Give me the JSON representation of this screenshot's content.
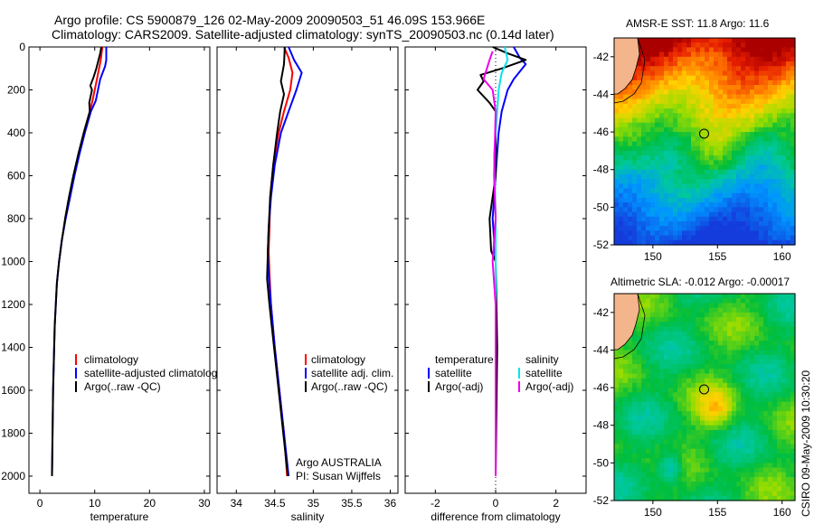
{
  "header": {
    "line1": "Argo profile: CS 5900879_126 02-May-2009 20090503_51 46.09S 153.966E",
    "line2": "Climatology: CARS2009. Satellite-adjusted climatology: synTS_20090503.nc (0.14d later)"
  },
  "credits": {
    "agency": "Argo AUSTRALIA",
    "pi": "PI: Susan Wijffels",
    "stamp": "CSIRO 09-May-2009 10:30:20"
  },
  "colors": {
    "climatology": "#ff0000",
    "satellite": "#0000ff",
    "argo": "#000000",
    "salinity_satellite": "#00e5ee",
    "salinity_argo": "#ee00ee"
  },
  "chart_data": [
    {
      "type": "line",
      "name": "temperature-profile",
      "xlabel": "temperature",
      "ylabel": "",
      "xlim": [
        -2,
        31
      ],
      "ylim": [
        2080,
        0
      ],
      "xticks": [
        0,
        10,
        20,
        30
      ],
      "yticks": [
        0,
        200,
        400,
        600,
        800,
        1000,
        1200,
        1400,
        1600,
        1800,
        2000
      ],
      "legend": [
        "climatology",
        "satellite-adjusted climatolog",
        "Argo(..raw -QC)"
      ],
      "series": [
        {
          "name": "climatology",
          "color": "#ff0000",
          "points": [
            [
              11.4,
              0
            ],
            [
              11.1,
              60
            ],
            [
              10.4,
              150
            ],
            [
              9.6,
              250
            ],
            [
              9.1,
              300
            ],
            [
              8.0,
              400
            ],
            [
              7.1,
              500
            ],
            [
              6.2,
              600
            ],
            [
              5.4,
              700
            ],
            [
              4.6,
              800
            ]
          ]
        },
        {
          "name": "satellite",
          "color": "#0000ff",
          "points": [
            [
              12.1,
              0
            ],
            [
              12.1,
              60
            ],
            [
              11.9,
              90
            ],
            [
              11.0,
              150
            ],
            [
              10.2,
              250
            ],
            [
              9.3,
              300
            ],
            [
              8.2,
              400
            ],
            [
              7.2,
              500
            ],
            [
              6.3,
              600
            ],
            [
              5.5,
              700
            ],
            [
              4.7,
              800
            ],
            [
              4.0,
              900
            ],
            [
              3.5,
              1000
            ],
            [
              3.1,
              1100
            ],
            [
              2.9,
              1200
            ],
            [
              2.7,
              1300
            ],
            [
              2.6,
              1400
            ],
            [
              2.5,
              1500
            ],
            [
              2.4,
              1600
            ],
            [
              2.35,
              1700
            ],
            [
              2.3,
              1800
            ],
            [
              2.25,
              1900
            ],
            [
              2.2,
              2000
            ]
          ]
        },
        {
          "name": "argo",
          "color": "#000000",
          "points": [
            [
              11.2,
              0
            ],
            [
              11.0,
              30
            ],
            [
              10.3,
              100
            ],
            [
              9.8,
              140
            ],
            [
              9.2,
              180
            ],
            [
              9.5,
              200
            ],
            [
              9.0,
              260
            ],
            [
              9.1,
              300
            ],
            [
              8.0,
              400
            ],
            [
              7.0,
              500
            ],
            [
              6.1,
              600
            ],
            [
              5.3,
              700
            ],
            [
              4.6,
              800
            ],
            [
              4.0,
              900
            ],
            [
              3.5,
              1000
            ],
            [
              3.1,
              1100
            ],
            [
              2.9,
              1200
            ],
            [
              2.7,
              1300
            ],
            [
              2.6,
              1400
            ],
            [
              2.5,
              1500
            ],
            [
              2.4,
              1600
            ],
            [
              2.35,
              1700
            ],
            [
              2.3,
              1800
            ],
            [
              2.25,
              1900
            ],
            [
              2.2,
              2000
            ]
          ]
        }
      ]
    },
    {
      "type": "line",
      "name": "salinity-profile",
      "xlabel": "salinity",
      "ylabel": "",
      "xlim": [
        33.75,
        36.1
      ],
      "ylim": [
        2080,
        0
      ],
      "xticks": [
        34,
        34.5,
        35,
        35.5,
        36
      ],
      "xtick_labels": [
        "34",
        "34.5",
        "35",
        "35.5",
        "36"
      ],
      "legend": [
        "climatology",
        "satellite adj. clim.",
        "Argo(..raw -QC)"
      ],
      "series": [
        {
          "name": "climatology",
          "color": "#ff0000",
          "points": [
            [
              34.62,
              0
            ],
            [
              34.68,
              50
            ],
            [
              34.73,
              120
            ],
            [
              34.7,
              200
            ],
            [
              34.62,
              300
            ],
            [
              34.55,
              400
            ],
            [
              34.48,
              550
            ],
            [
              34.44,
              700
            ],
            [
              34.43,
              850
            ],
            [
              34.42,
              950
            ],
            [
              34.43,
              1050
            ],
            [
              34.45,
              1200
            ],
            [
              34.5,
              1400
            ],
            [
              34.56,
              1600
            ],
            [
              34.62,
              1800
            ],
            [
              34.66,
              2000
            ]
          ]
        },
        {
          "name": "satellite",
          "color": "#0000ff",
          "points": [
            [
              34.68,
              0
            ],
            [
              34.75,
              60
            ],
            [
              34.85,
              120
            ],
            [
              34.78,
              200
            ],
            [
              34.68,
              300
            ],
            [
              34.58,
              400
            ],
            [
              34.5,
              550
            ],
            [
              34.45,
              700
            ],
            [
              34.42,
              850
            ],
            [
              34.41,
              950
            ],
            [
              34.42,
              1050
            ],
            [
              34.45,
              1200
            ],
            [
              34.5,
              1400
            ],
            [
              34.56,
              1600
            ],
            [
              34.62,
              1800
            ],
            [
              34.68,
              2000
            ]
          ]
        },
        {
          "name": "argo",
          "color": "#000000",
          "points": [
            [
              34.63,
              0
            ],
            [
              34.62,
              80
            ],
            [
              34.58,
              160
            ],
            [
              34.62,
              220
            ],
            [
              34.57,
              300
            ],
            [
              34.53,
              400
            ],
            [
              34.48,
              550
            ],
            [
              34.44,
              700
            ],
            [
              34.42,
              850
            ],
            [
              34.41,
              950
            ],
            [
              34.4,
              1080
            ],
            [
              34.43,
              1200
            ],
            [
              34.49,
              1400
            ],
            [
              34.55,
              1600
            ],
            [
              34.61,
              1800
            ],
            [
              34.67,
              2000
            ]
          ]
        }
      ]
    },
    {
      "type": "line",
      "name": "difference-profile",
      "xlabel": "difference from climatology",
      "ylabel": "",
      "xlim": [
        -3,
        3
      ],
      "ylim": [
        2080,
        0
      ],
      "xticks": [
        -2,
        0,
        2
      ],
      "legend_temperature": [
        "temperature",
        "satellite",
        "Argo(-adj)"
      ],
      "legend_salinity": [
        "salinity",
        "satellite",
        "Argo(-adj)"
      ],
      "series": [
        {
          "name": "temperature-satellite",
          "color": "#0000ff",
          "points": [
            [
              0.6,
              0
            ],
            [
              0.8,
              50
            ],
            [
              1.0,
              80
            ],
            [
              0.6,
              150
            ],
            [
              0.4,
              200
            ],
            [
              0.2,
              300
            ],
            [
              0.1,
              400
            ],
            [
              0.0,
              600
            ],
            [
              -0.1,
              800
            ],
            [
              0.0,
              1000
            ],
            [
              0.0,
              1500
            ],
            [
              0.0,
              2000
            ]
          ]
        },
        {
          "name": "temperature-argo",
          "color": "#000000",
          "points": [
            [
              -0.1,
              0
            ],
            [
              0.4,
              30
            ],
            [
              1.0,
              60
            ],
            [
              0.2,
              100
            ],
            [
              -0.5,
              130
            ],
            [
              -0.4,
              160
            ],
            [
              -0.6,
              200
            ],
            [
              -0.2,
              260
            ],
            [
              0.0,
              300
            ],
            [
              0.0,
              600
            ],
            [
              -0.2,
              800
            ],
            [
              -0.15,
              950
            ],
            [
              0.0,
              1000
            ],
            [
              0.05,
              1400
            ],
            [
              0.0,
              2000
            ]
          ]
        },
        {
          "name": "salinity-satellite",
          "color": "#00e5ee",
          "points": [
            [
              0.3,
              0
            ],
            [
              0.4,
              60
            ],
            [
              0.2,
              120
            ],
            [
              0.1,
              200
            ],
            [
              0.05,
              300
            ],
            [
              -0.05,
              500
            ],
            [
              0.0,
              800
            ],
            [
              0.0,
              1200
            ],
            [
              0.0,
              1600
            ],
            [
              0.0,
              2000
            ]
          ]
        },
        {
          "name": "salinity-argo",
          "color": "#ee00ee",
          "points": [
            [
              -0.1,
              20
            ],
            [
              -0.2,
              60
            ],
            [
              -0.4,
              150
            ],
            [
              -0.1,
              200
            ],
            [
              0.0,
              300
            ],
            [
              -0.05,
              600
            ],
            [
              0.0,
              800
            ],
            [
              -0.1,
              1000
            ],
            [
              0.0,
              1200
            ],
            [
              0.0,
              2000
            ]
          ]
        }
      ]
    },
    {
      "type": "heatmap",
      "name": "amsre-sst-map",
      "title": "AMSR-E SST: 11.8 Argo: 11.6",
      "xlim": [
        147,
        161
      ],
      "ylim": [
        -52,
        -41
      ],
      "xticks": [
        150,
        155,
        160
      ],
      "yticks": [
        -42,
        -44,
        -46,
        -48,
        -50,
        -52
      ],
      "argo_position": [
        153.966,
        -46.09
      ]
    },
    {
      "type": "heatmap",
      "name": "altimetric-sla-map",
      "title": "Altimetric SLA: -0.012 Argo: -0.00017",
      "xlim": [
        147,
        161
      ],
      "ylim": [
        -52,
        -41
      ],
      "xticks": [
        150,
        155,
        160
      ],
      "yticks": [
        -42,
        -44,
        -46,
        -48,
        -50,
        -52
      ],
      "argo_position": [
        153.966,
        -46.09
      ]
    }
  ]
}
